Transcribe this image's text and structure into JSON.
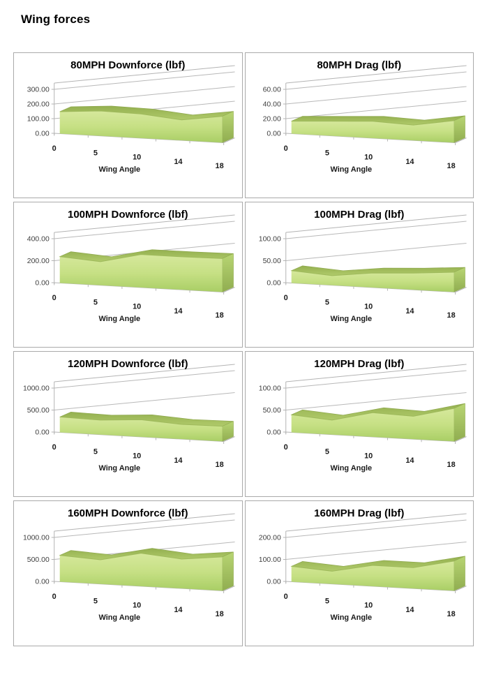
{
  "page": {
    "title": "Wing forces"
  },
  "colors": {
    "card_border": "#aaaaaa",
    "axis_line": "#b3b3b3",
    "gridline": "#b8b8b8",
    "area_face_top": "#d6e89c",
    "area_face_mid": "#c6e084",
    "area_face_bottom": "#a9ce65",
    "area_top_surface_dark": "#94b050",
    "area_top_surface_light": "#b0ca6a",
    "area_edge": "#8ea84e",
    "y_tick_text": "#3f3f3f",
    "x_tick_text": "#1a1a1a",
    "title_text": "#000000"
  },
  "chart_data": [
    {
      "type": "area",
      "title": "80MPH Downforce (lbf)",
      "xlabel": "Wing Angle",
      "categories": [
        "0",
        "5",
        "10",
        "14",
        "18"
      ],
      "values": [
        150,
        170,
        165,
        140,
        180
      ],
      "ylim": [
        0,
        300
      ],
      "ytick_labels": [
        "0.00",
        "100.00",
        "200.00",
        "300.00"
      ],
      "grid": true,
      "legend": "none"
    },
    {
      "type": "area",
      "title": "80MPH Drag (lbf)",
      "xlabel": "Wing Angle",
      "categories": [
        "0",
        "5",
        "10",
        "14",
        "18"
      ],
      "values": [
        17,
        20,
        23,
        21,
        30
      ],
      "ylim": [
        0,
        60
      ],
      "ytick_labels": [
        "0.00",
        "20.00",
        "40.00",
        "60.00"
      ],
      "grid": true,
      "legend": "none"
    },
    {
      "type": "area",
      "title": "100MPH Downforce (lbf)",
      "xlabel": "Wing Angle",
      "categories": [
        "0",
        "5",
        "10",
        "14",
        "18"
      ],
      "values": [
        240,
        215,
        300,
        300,
        305
      ],
      "ylim": [
        0,
        400
      ],
      "ytick_labels": [
        "0.00",
        "200.00",
        "400.00"
      ],
      "grid": true,
      "legend": "none"
    },
    {
      "type": "area",
      "title": "100MPH Drag (lbf)",
      "xlabel": "Wing Angle",
      "categories": [
        "0",
        "5",
        "10",
        "14",
        "18"
      ],
      "values": [
        28,
        22,
        33,
        38,
        45
      ],
      "ylim": [
        0,
        100
      ],
      "ytick_labels": [
        "0.00",
        "50.00",
        "100.00"
      ],
      "grid": true,
      "legend": "none"
    },
    {
      "type": "area",
      "title": "120MPH Downforce (lbf)",
      "xlabel": "Wing Angle",
      "categories": [
        "0",
        "5",
        "10",
        "14",
        "18"
      ],
      "values": [
        350,
        330,
        390,
        335,
        345
      ],
      "ylim": [
        0,
        1000
      ],
      "ytick_labels": [
        "0.00",
        "500.00",
        "1000.00"
      ],
      "grid": true,
      "legend": "none"
    },
    {
      "type": "area",
      "title": "120MPH Drag (lbf)",
      "xlabel": "Wing Angle",
      "categories": [
        "0",
        "5",
        "10",
        "14",
        "18"
      ],
      "values": [
        40,
        33,
        55,
        52,
        75
      ],
      "ylim": [
        0,
        100
      ],
      "ytick_labels": [
        "0.00",
        "50.00",
        "100.00"
      ],
      "grid": true,
      "legend": "none"
    },
    {
      "type": "area",
      "title": "160MPH Downforce (lbf)",
      "xlabel": "Wing Angle",
      "categories": [
        "0",
        "5",
        "10",
        "14",
        "18"
      ],
      "values": [
        600,
        550,
        750,
        670,
        770
      ],
      "ylim": [
        0,
        1000
      ],
      "ytick_labels": [
        "0.00",
        "500.00",
        "1000.00"
      ],
      "grid": true,
      "legend": "none"
    },
    {
      "type": "area",
      "title": "160MPH Drag (lbf)",
      "xlabel": "Wing Angle",
      "categories": [
        "0",
        "5",
        "10",
        "14",
        "18"
      ],
      "values": [
        70,
        58,
        95,
        95,
        135
      ],
      "ylim": [
        0,
        200
      ],
      "ytick_labels": [
        "0.00",
        "100.00",
        "200.00"
      ],
      "grid": true,
      "legend": "none"
    }
  ]
}
